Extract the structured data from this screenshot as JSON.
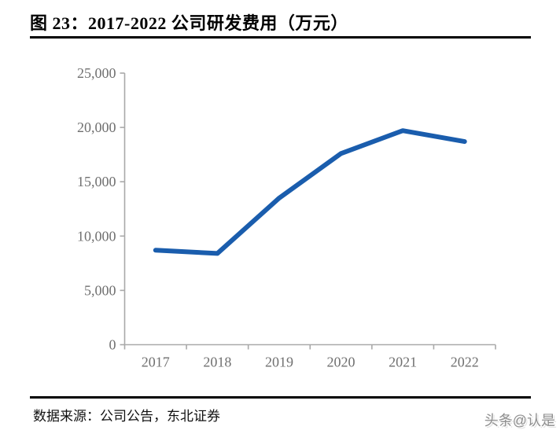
{
  "title": {
    "text": "图 23：2017-2022 公司研发费用（万元）"
  },
  "chart_data": {
    "type": "line",
    "title": "图 23：2017-2022 公司研发费用（万元）",
    "categories": [
      "2017",
      "2018",
      "2019",
      "2020",
      "2021",
      "2022"
    ],
    "series": [
      {
        "name": "研发费用（万元）",
        "values": [
          8700,
          8400,
          13500,
          17600,
          19700,
          18700
        ]
      }
    ],
    "xlabel": "",
    "ylabel": "",
    "ylim": [
      0,
      25000
    ],
    "ytick_step": 5000,
    "ytick_labels": [
      "0",
      "5,000",
      "10,000",
      "15,000",
      "20,000",
      "25,000"
    ],
    "grid": false,
    "legend_position": "none",
    "line_color": "#1A5DAD",
    "axis_color": "#A9A9A9",
    "label_color": "#707070"
  },
  "footer": {
    "source": "数据来源：公司公告，东北证券",
    "watermark": "头条@认是"
  }
}
